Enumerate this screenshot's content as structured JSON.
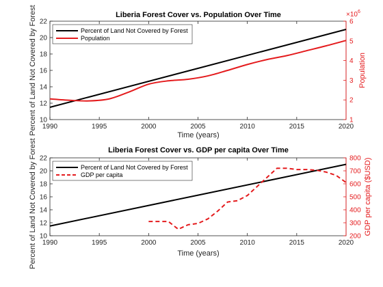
{
  "colors": {
    "black_series": "#000000",
    "red_series": "#e41a1c",
    "axis": "#262626",
    "background": "#ffffff"
  },
  "chart_data": [
    {
      "type": "line",
      "title": "Liberia Forest Cover vs. Population Over Time",
      "xlabel": "Time (years)",
      "ylabel_left": "Percent of Land Not Covered by Forest",
      "ylabel_right": "Population",
      "right_exponent_base": "×10",
      "right_exponent_power": "6",
      "xlim": [
        1990,
        2020
      ],
      "ylim_left": [
        10,
        22
      ],
      "ylim_right": [
        1,
        6
      ],
      "xticks": [
        1990,
        1995,
        2000,
        2005,
        2010,
        2015,
        2020
      ],
      "yticks_left": [
        10,
        12,
        14,
        16,
        18,
        20,
        22
      ],
      "yticks_right": [
        1,
        2,
        3,
        4,
        5,
        6
      ],
      "grid": false,
      "legend_position": "top-left",
      "series": [
        {
          "name": "Percent of Land Not Covered by Forest",
          "axis": "left",
          "color": "#000000",
          "style": "solid",
          "x": [
            1990,
            2020
          ],
          "y": [
            11.5,
            21.0
          ]
        },
        {
          "name": "Population",
          "axis": "right",
          "color": "#e41a1c",
          "style": "solid",
          "x": [
            1990,
            1992,
            1994,
            1996,
            1998,
            2000,
            2002,
            2004,
            2006,
            2008,
            2010,
            2012,
            2014,
            2016,
            2018,
            2020
          ],
          "y": [
            2.05,
            1.98,
            1.95,
            2.05,
            2.4,
            2.8,
            2.97,
            3.05,
            3.22,
            3.5,
            3.8,
            4.05,
            4.25,
            4.5,
            4.75,
            5.02
          ]
        }
      ]
    },
    {
      "type": "line",
      "title": "Liberia Forest Cover vs. GDP per capita Over Time",
      "xlabel": "Time (years)",
      "ylabel_left": "Percent of Land Not Covered by Forest",
      "ylabel_right": "GDP per capita ($USD)",
      "xlim": [
        1990,
        2020
      ],
      "ylim_left": [
        10,
        22
      ],
      "ylim_right": [
        200,
        800
      ],
      "xticks": [
        1990,
        1995,
        2000,
        2005,
        2010,
        2015,
        2020
      ],
      "yticks_left": [
        10,
        12,
        14,
        16,
        18,
        20,
        22
      ],
      "yticks_right": [
        200,
        300,
        400,
        500,
        600,
        700,
        800
      ],
      "grid": false,
      "legend_position": "top-left",
      "series": [
        {
          "name": "Percent of Land Not Covered by Forest",
          "axis": "left",
          "color": "#000000",
          "style": "solid",
          "x": [
            1990,
            2020
          ],
          "y": [
            11.5,
            21.0
          ]
        },
        {
          "name": "GDP per capita",
          "axis": "right",
          "color": "#e41a1c",
          "style": "dashed",
          "x": [
            2000,
            2001,
            2002,
            2003,
            2004,
            2005,
            2006,
            2007,
            2008,
            2009,
            2010,
            2011,
            2012,
            2013,
            2014,
            2015,
            2016,
            2017,
            2018,
            2019,
            2020
          ],
          "y": [
            310,
            310,
            310,
            250,
            285,
            295,
            330,
            390,
            460,
            470,
            510,
            580,
            650,
            720,
            720,
            710,
            710,
            705,
            690,
            665,
            610
          ]
        }
      ]
    }
  ]
}
